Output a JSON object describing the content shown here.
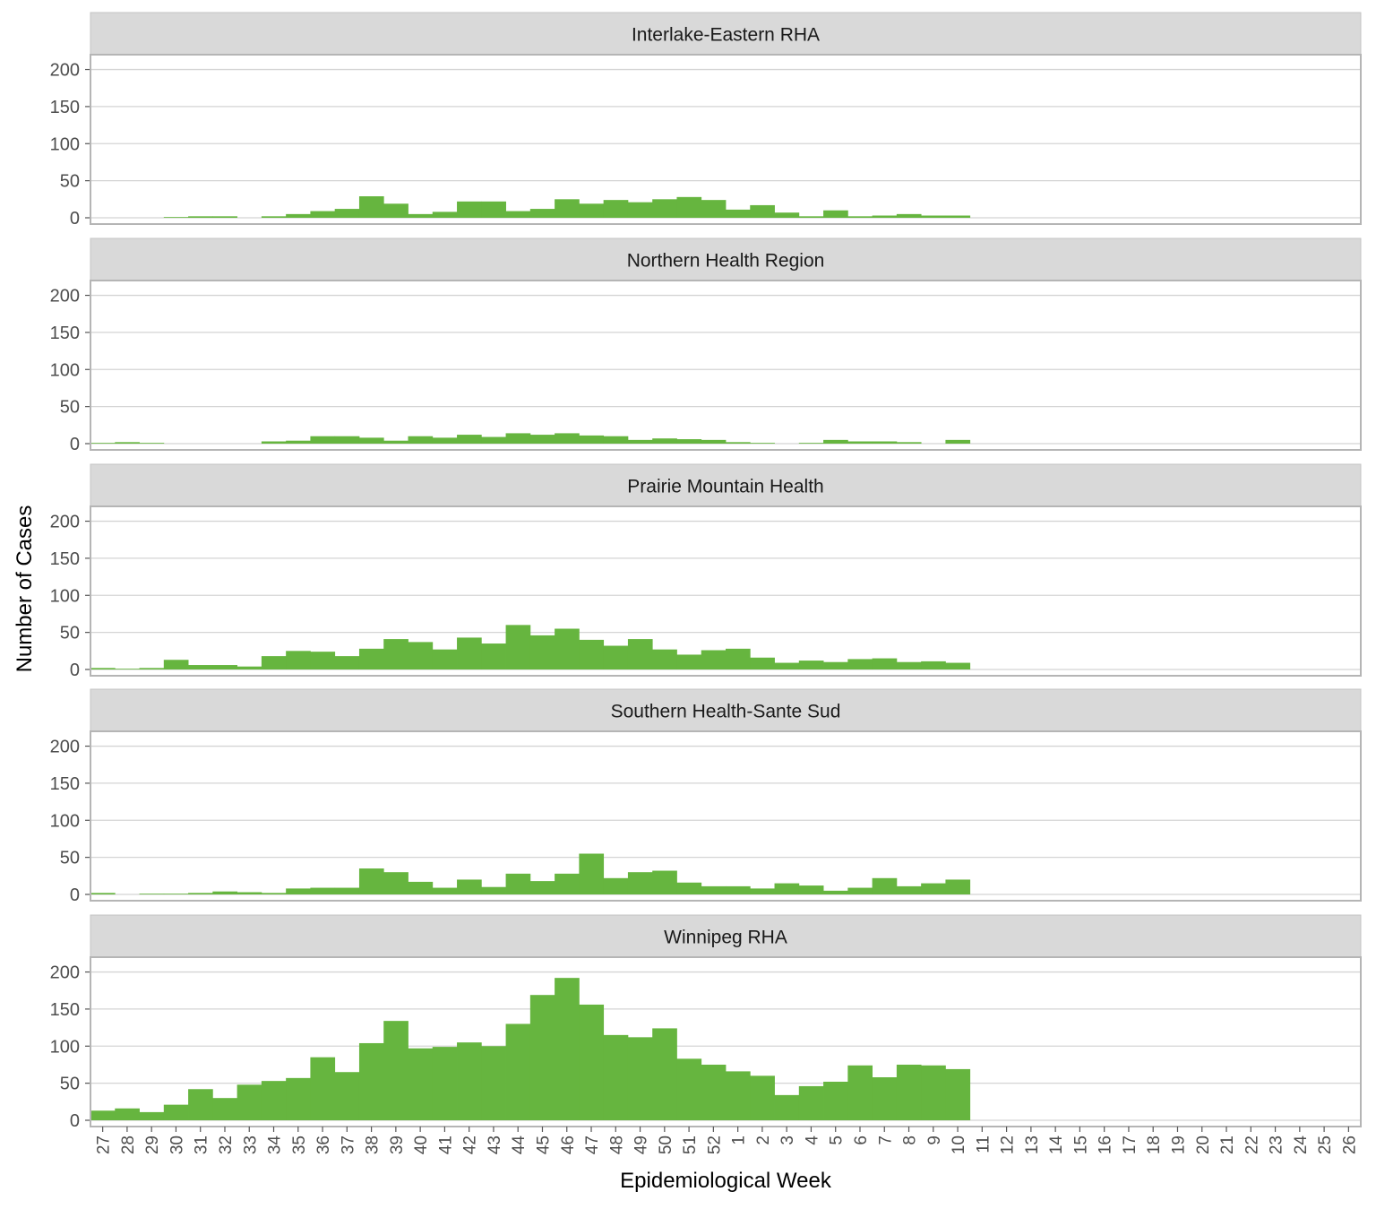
{
  "chart_data": {
    "type": "bar",
    "xlabel": "Epidemiological Week",
    "ylabel": "Number of Cases",
    "ylim": [
      0,
      200
    ],
    "yticks": [
      0,
      50,
      100,
      150,
      200
    ],
    "grid": true,
    "bar_color": "#66b53f",
    "strip_color": "#d9d9d9",
    "categories": [
      "27",
      "28",
      "29",
      "30",
      "31",
      "32",
      "33",
      "34",
      "35",
      "36",
      "37",
      "38",
      "39",
      "40",
      "41",
      "42",
      "43",
      "44",
      "45",
      "46",
      "47",
      "48",
      "49",
      "50",
      "51",
      "52",
      "1",
      "2",
      "3",
      "4",
      "5",
      "6",
      "7",
      "8",
      "9",
      "10",
      "11",
      "12",
      "13",
      "14",
      "15",
      "16",
      "17",
      "18",
      "19",
      "20",
      "21",
      "22",
      "23",
      "24",
      "25",
      "26"
    ],
    "panels": [
      {
        "name": "Interlake-Eastern RHA",
        "values": [
          0,
          0,
          0,
          1,
          2,
          2,
          0,
          2,
          5,
          9,
          12,
          29,
          19,
          5,
          8,
          22,
          22,
          9,
          12,
          25,
          19,
          24,
          21,
          25,
          28,
          24,
          11,
          17,
          7,
          2,
          10,
          2,
          3,
          5,
          3,
          3
        ]
      },
      {
        "name": "Northern Health Region",
        "values": [
          1,
          2,
          1,
          0,
          0,
          0,
          0,
          3,
          4,
          10,
          10,
          8,
          4,
          10,
          8,
          12,
          9,
          14,
          12,
          14,
          11,
          10,
          5,
          7,
          6,
          5,
          2,
          1,
          0,
          1,
          5,
          3,
          3,
          2,
          0,
          5
        ]
      },
      {
        "name": "Prairie Mountain Health",
        "values": [
          2,
          1,
          2,
          13,
          6,
          6,
          4,
          18,
          25,
          24,
          18,
          28,
          41,
          37,
          27,
          43,
          35,
          60,
          46,
          55,
          40,
          32,
          41,
          27,
          20,
          26,
          28,
          16,
          9,
          12,
          10,
          14,
          15,
          10,
          11,
          9
        ]
      },
      {
        "name": "Southern Health-Sante Sud",
        "values": [
          2,
          0,
          1,
          1,
          2,
          4,
          3,
          2,
          8,
          9,
          9,
          35,
          30,
          17,
          9,
          20,
          10,
          28,
          18,
          28,
          55,
          22,
          30,
          32,
          16,
          11,
          11,
          8,
          15,
          12,
          5,
          9,
          22,
          11,
          15,
          20
        ]
      },
      {
        "name": "Winnipeg RHA",
        "values": [
          13,
          16,
          11,
          21,
          42,
          30,
          48,
          53,
          57,
          85,
          65,
          104,
          134,
          97,
          99,
          105,
          100,
          130,
          169,
          192,
          156,
          115,
          112,
          124,
          83,
          75,
          66,
          60,
          34,
          46,
          52,
          74,
          58,
          75,
          74,
          69
        ]
      }
    ]
  }
}
